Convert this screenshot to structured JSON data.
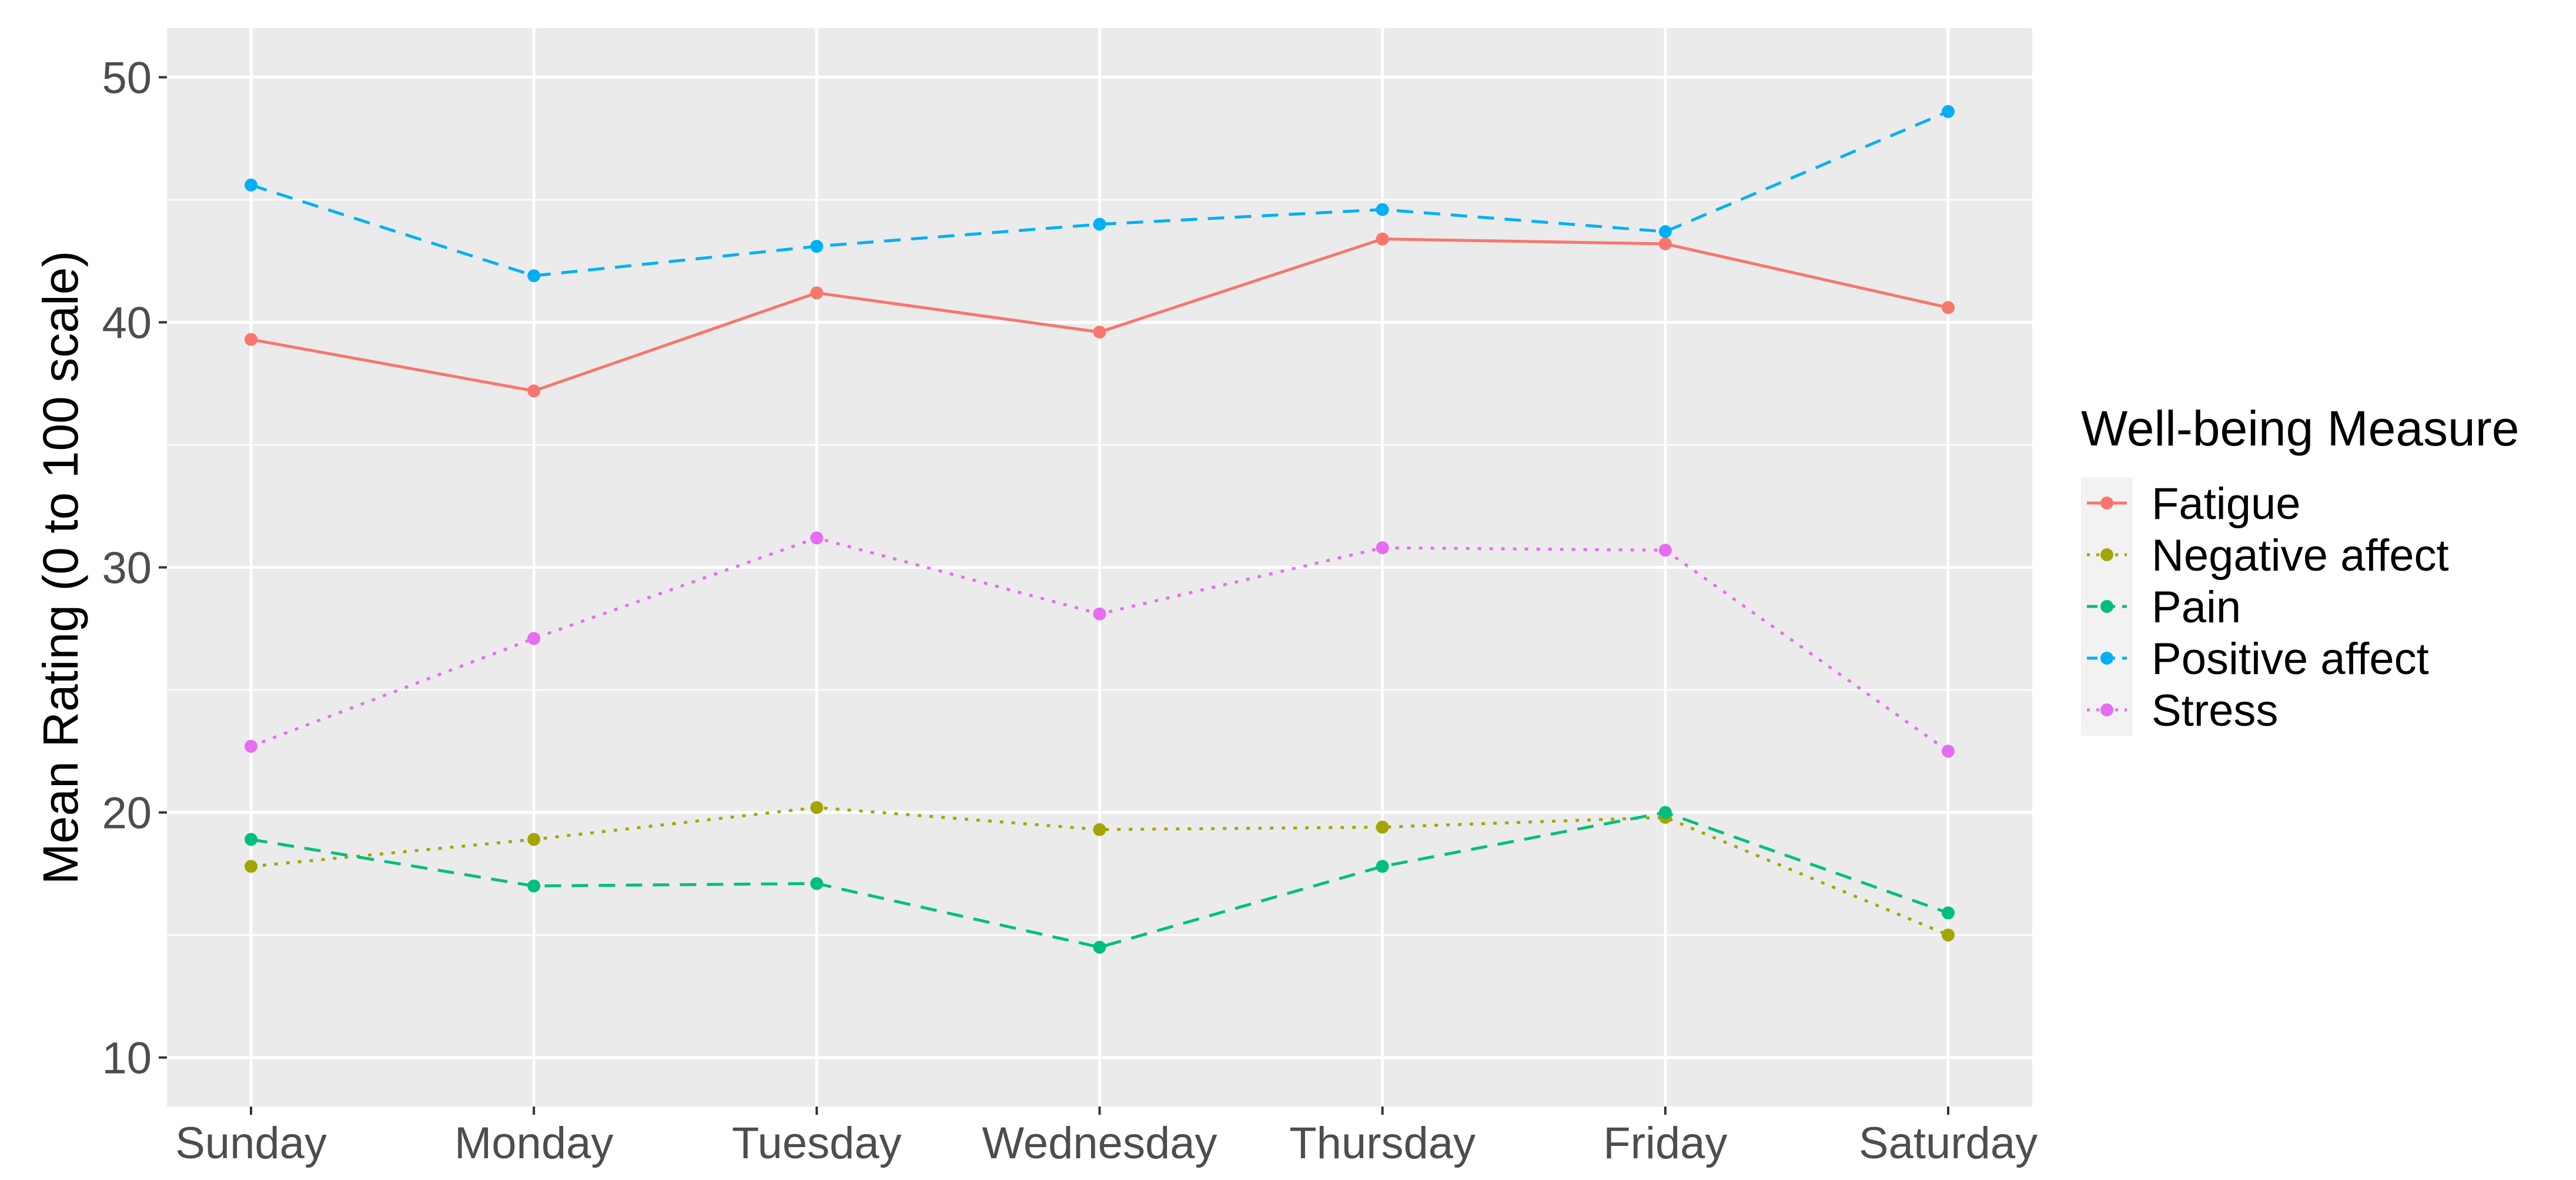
{
  "chart_data": {
    "type": "line",
    "title": "",
    "xlabel": "",
    "ylabel": "Mean Rating (0 to 100 scale)",
    "ylim": [
      8,
      52
    ],
    "y_ticks": [
      10,
      20,
      30,
      40,
      50
    ],
    "grid": true,
    "legend_position": "right",
    "legend_title": "Well-being Measure",
    "categories": [
      "Sunday",
      "Monday",
      "Tuesday",
      "Wednesday",
      "Thursday",
      "Friday",
      "Saturday"
    ],
    "series": [
      {
        "name": "Fatigue",
        "color": "#F8766D",
        "dash": "solid",
        "values": [
          39.3,
          37.2,
          41.2,
          39.6,
          43.4,
          43.2,
          40.6
        ]
      },
      {
        "name": "Negative affect",
        "color": "#A3A500",
        "dash": "dotted",
        "values": [
          17.8,
          18.9,
          20.2,
          19.3,
          19.4,
          19.8,
          15.0
        ]
      },
      {
        "name": "Pain",
        "color": "#00BF7D",
        "dash": "dashed",
        "values": [
          18.9,
          17.0,
          17.1,
          14.5,
          17.8,
          20.0,
          15.9
        ]
      },
      {
        "name": "Positive affect",
        "color": "#00B0F6",
        "dash": "dashed",
        "values": [
          45.6,
          41.9,
          43.1,
          44.0,
          44.6,
          43.7,
          48.6
        ]
      },
      {
        "name": "Stress",
        "color": "#E76BF3",
        "dash": "dotted",
        "values": [
          22.7,
          27.1,
          31.2,
          28.1,
          30.8,
          30.7,
          22.5
        ]
      }
    ]
  }
}
